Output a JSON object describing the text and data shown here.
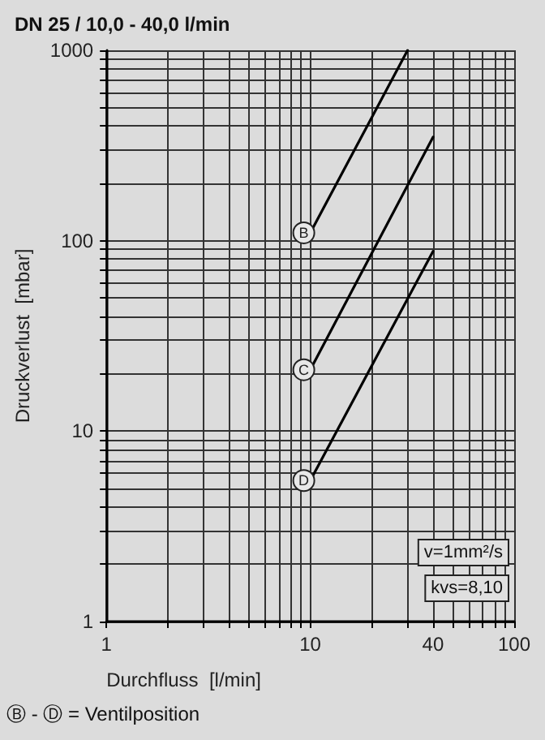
{
  "chart_data": {
    "type": "line",
    "title": "DN 25 / 10,0 - 40,0 l/min",
    "xlabel": "Durchfluss  [l/min]",
    "ylabel": "Druckverlust  [mbar]",
    "log": "xy",
    "grid": true,
    "marker": "none",
    "line_style": "solid",
    "xlim": [
      1,
      100
    ],
    "ylim": [
      1,
      1000
    ],
    "xticks": [
      1,
      {
        "value": 2,
        "label": null
      },
      {
        "value": 3,
        "label": null
      },
      {
        "value": 4,
        "label": null
      },
      {
        "value": 5,
        "label": null
      },
      {
        "value": 6,
        "label": null
      },
      {
        "value": 7,
        "label": null
      },
      {
        "value": 8,
        "label": null
      },
      {
        "value": 9,
        "label": null
      },
      10,
      {
        "value": 20,
        "label": null
      },
      {
        "value": 30,
        "label": null
      },
      40,
      {
        "value": 50,
        "label": null
      },
      {
        "value": 60,
        "label": null
      },
      {
        "value": 70,
        "label": null
      },
      {
        "value": 80,
        "label": null
      },
      {
        "value": 90,
        "label": null
      },
      100
    ],
    "yticks": [
      1,
      {
        "value": 2,
        "label": null
      },
      {
        "value": 3,
        "label": null
      },
      {
        "value": 4,
        "label": null
      },
      {
        "value": 5,
        "label": null
      },
      {
        "value": 6,
        "label": null
      },
      {
        "value": 7,
        "label": null
      },
      {
        "value": 8,
        "label": null
      },
      {
        "value": 9,
        "label": null
      },
      10,
      {
        "value": 20,
        "label": null
      },
      {
        "value": 30,
        "label": null
      },
      {
        "value": 40,
        "label": null
      },
      {
        "value": 50,
        "label": null
      },
      {
        "value": 60,
        "label": null
      },
      {
        "value": 70,
        "label": null
      },
      {
        "value": 80,
        "label": null
      },
      {
        "value": 90,
        "label": null
      },
      100,
      {
        "value": 200,
        "label": null
      },
      {
        "value": 300,
        "label": null
      },
      {
        "value": 400,
        "label": null
      },
      {
        "value": 500,
        "label": null
      },
      {
        "value": 600,
        "label": null
      },
      {
        "value": 700,
        "label": null
      },
      {
        "value": 800,
        "label": null
      },
      {
        "value": 900,
        "label": null
      },
      1000
    ],
    "series": [
      {
        "name": "B",
        "color": "#000000",
        "x": [
          10,
          30
        ],
        "values": [
          110,
          1000
        ]
      },
      {
        "name": "C",
        "color": "#000000",
        "x": [
          10,
          40
        ],
        "values": [
          21,
          350
        ]
      },
      {
        "name": "D",
        "color": "#000000",
        "x": [
          10,
          40
        ],
        "values": [
          5.5,
          88
        ]
      }
    ],
    "annotations": [
      "v=1mm²/s",
      "kvs=8,10",
      "Ⓑ - Ⓓ = Ventilposition"
    ]
  }
}
